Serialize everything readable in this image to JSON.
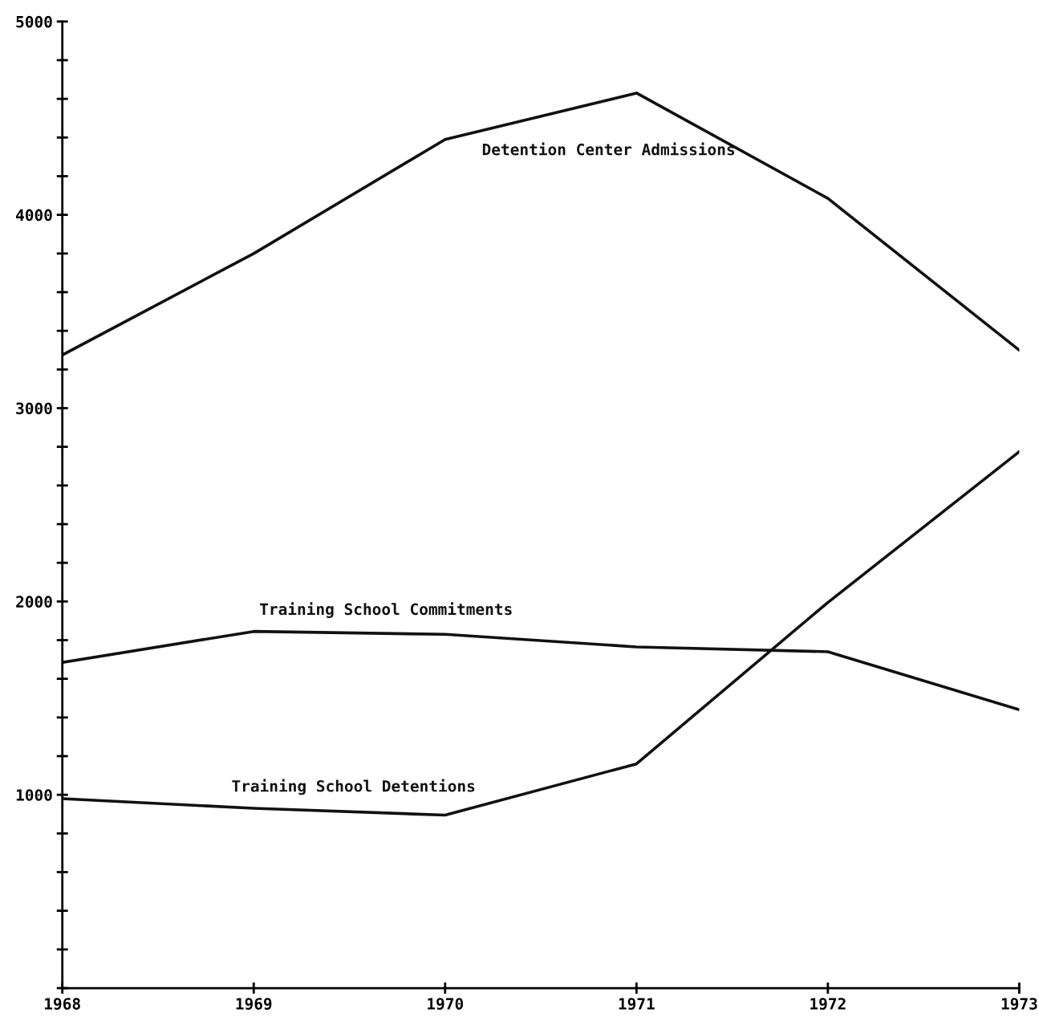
{
  "chart_data": {
    "type": "line",
    "x": [
      1968,
      1969,
      1970,
      1971,
      1972,
      1973
    ],
    "series": [
      {
        "name": "Detention Center Admissions",
        "color": "#111111",
        "values": [
          3275,
          3800,
          4390,
          4630,
          4085,
          3300
        ]
      },
      {
        "name": "Training School Commitments",
        "color": "#111111",
        "values": [
          1685,
          1845,
          1830,
          1765,
          1740,
          1440
        ]
      },
      {
        "name": "Training School Detentions",
        "color": "#111111",
        "values": [
          980,
          930,
          895,
          1160,
          1995,
          2775
        ]
      }
    ],
    "xlim": [
      1968,
      1973
    ],
    "xticks": [
      1968,
      1969,
      1970,
      1971,
      1972,
      1973
    ],
    "ylim": [
      0,
      5000
    ],
    "yticks": [
      {
        "value": 0,
        "label": null
      },
      {
        "value": 200,
        "label": null
      },
      {
        "value": 400,
        "label": null
      },
      {
        "value": 600,
        "label": null
      },
      {
        "value": 800,
        "label": null
      },
      1000,
      {
        "value": 1200,
        "label": null
      },
      {
        "value": 1400,
        "label": null
      },
      {
        "value": 1600,
        "label": null
      },
      {
        "value": 1800,
        "label": null
      },
      2000,
      {
        "value": 2200,
        "label": null
      },
      {
        "value": 2400,
        "label": null
      },
      {
        "value": 2600,
        "label": null
      },
      {
        "value": 2800,
        "label": null
      },
      3000,
      {
        "value": 3200,
        "label": null
      },
      {
        "value": 3400,
        "label": null
      },
      {
        "value": 3600,
        "label": null
      },
      {
        "value": 3800,
        "label": null
      },
      4000,
      {
        "value": 4200,
        "label": null
      },
      {
        "value": 4400,
        "label": null
      },
      {
        "value": 4600,
        "label": null
      },
      {
        "value": 4800,
        "label": null
      },
      5000
    ],
    "grid": false,
    "legend": false,
    "marker": "none",
    "line_style": "solid"
  }
}
